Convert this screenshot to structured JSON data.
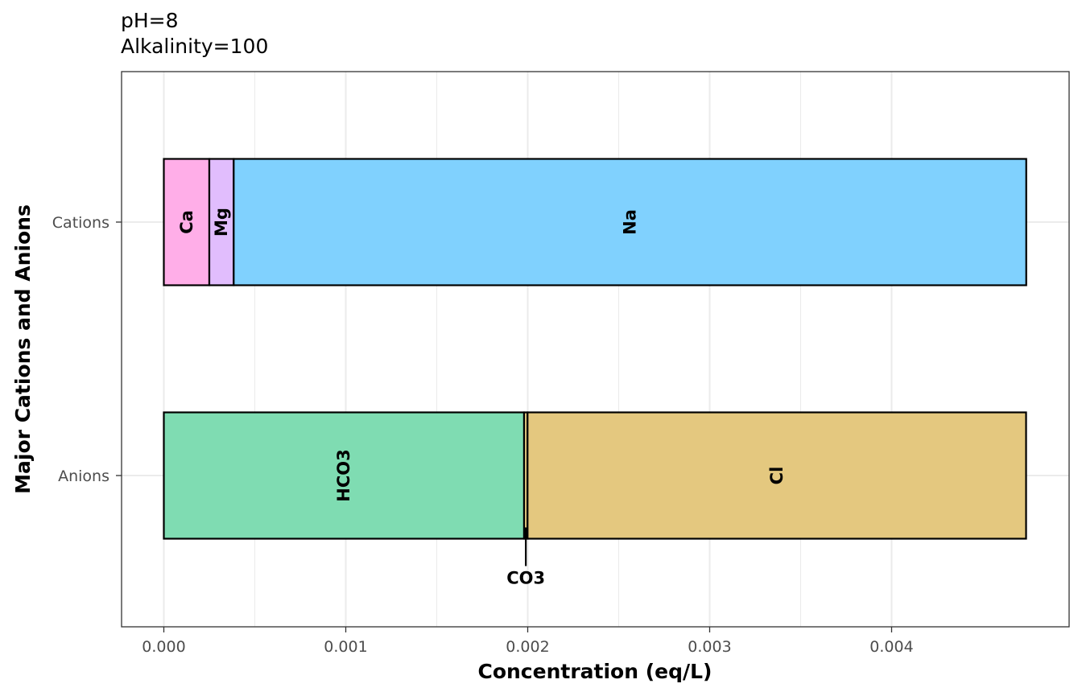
{
  "chart_data": {
    "type": "bar",
    "orientation": "horizontal",
    "stacked": true,
    "title_lines": [
      "pH=8",
      "Alkalinity=100"
    ],
    "xlabel": "Concentration (eq/L)",
    "ylabel": "Major Cations and Anions",
    "xlim": [
      -0.000236,
      0.004965
    ],
    "x_ticks": [
      0.0,
      0.001,
      0.002,
      0.003,
      0.004
    ],
    "x_tick_labels": [
      "0.000",
      "0.001",
      "0.002",
      "0.003",
      "0.004"
    ],
    "categories": [
      "Cations",
      "Anions"
    ],
    "grid": true,
    "bars": [
      {
        "category": "Cations",
        "segments": [
          {
            "name": "Ca",
            "value": 0.00025,
            "color": "#ffaee8"
          },
          {
            "name": "Mg",
            "value": 0.000134,
            "color": "#e1bdfd"
          },
          {
            "name": "Na",
            "value": 0.004356,
            "color": "#80d1fe"
          }
        ]
      },
      {
        "category": "Anions",
        "segments": [
          {
            "name": "HCO3",
            "value": 0.00198,
            "color": "#7fdcb2"
          },
          {
            "name": "CO3",
            "value": 1.91e-05,
            "color": "#e4c87f",
            "callout": true
          },
          {
            "name": "Cl",
            "value": 0.00274,
            "color": "#e4c87f"
          }
        ]
      }
    ]
  }
}
